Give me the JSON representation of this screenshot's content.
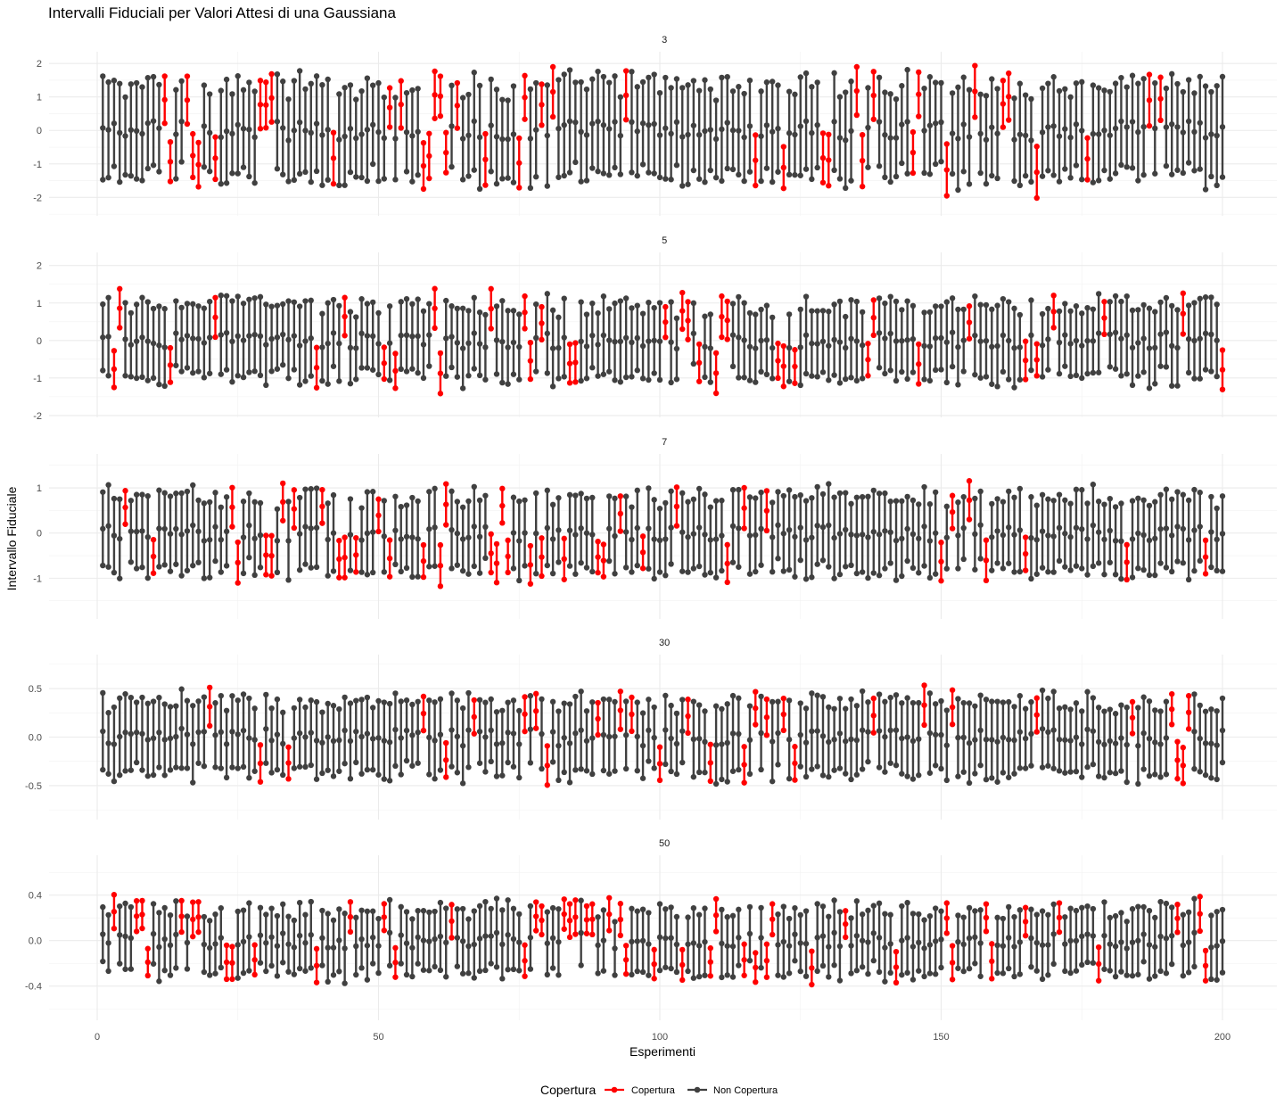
{
  "chart_data": {
    "type": "interval",
    "title": "Intervalli Fiduciali per Valori Attesi di una Gaussiana",
    "xlabel": "Esperimenti",
    "ylabel": "Intervallo Fiduciale",
    "xlim": [
      1,
      200
    ],
    "x_ticks": [
      0,
      50,
      100,
      150,
      200
    ],
    "x_tick_labels": [
      "0",
      "50",
      "100",
      "150",
      "200"
    ],
    "legend": {
      "title": "Copertura",
      "position": "bottom",
      "entries": [
        {
          "label": "Copertura",
          "color": "#FF0000"
        },
        {
          "label": "Non Copertura",
          "color": "#404040"
        }
      ]
    },
    "panels": [
      {
        "strip": "3",
        "ylim": [
          -2.55,
          2.35
        ],
        "y_ticks": [
          -2,
          -1,
          0,
          1,
          2
        ],
        "y_tick_labels": [
          "-2",
          "-1",
          "0",
          "1",
          "2"
        ],
        "base_half_width": 1.35,
        "center_sd": 0.3,
        "red_experiments": [
          12,
          13,
          16,
          17,
          18,
          21,
          29,
          30,
          31,
          42,
          52,
          54,
          58,
          59,
          60,
          61,
          62,
          64,
          69,
          75,
          76,
          79,
          81,
          94,
          117,
          122,
          129,
          130,
          135,
          136,
          138,
          145,
          146,
          151,
          156,
          161,
          162,
          167,
          176,
          187,
          189
        ],
        "max_low": -2.6,
        "max_high": 2.38
      },
      {
        "strip": "5",
        "ylim": [
          -2.05,
          2.35
        ],
        "y_ticks": [
          -2,
          -1,
          0,
          1,
          2
        ],
        "y_tick_labels": [
          "-2",
          "-1",
          "0",
          "1",
          "2"
        ],
        "base_half_width": 0.95,
        "center_sd": 0.22,
        "red_experiments": [
          3,
          4,
          13,
          21,
          39,
          44,
          51,
          53,
          60,
          61,
          70,
          76,
          77,
          79,
          84,
          85,
          101,
          104,
          105,
          107,
          110,
          111,
          112,
          121,
          122,
          124,
          137,
          138,
          146,
          155,
          165,
          167,
          170,
          179,
          193,
          200
        ],
        "max_low": -1.95,
        "max_high": 2.27
      },
      {
        "strip": "7",
        "ylim": [
          -1.9,
          1.75
        ],
        "y_ticks": [
          -1,
          0,
          1
        ],
        "y_tick_labels": [
          "-1",
          "0",
          "1"
        ],
        "base_half_width": 0.8,
        "center_sd": 0.18,
        "red_experiments": [
          5,
          10,
          24,
          25,
          30,
          31,
          33,
          35,
          40,
          43,
          44,
          46,
          50,
          52,
          58,
          61,
          62,
          70,
          71,
          72,
          73,
          77,
          79,
          83,
          89,
          90,
          93,
          97,
          103,
          112,
          115,
          119,
          150,
          152,
          155,
          158,
          165,
          183,
          197
        ],
        "max_low": -1.77,
        "max_high": 1.72
      },
      {
        "strip": "30",
        "ylim": [
          -0.85,
          0.85
        ],
        "y_ticks": [
          -0.5,
          0.0,
          0.5
        ],
        "y_tick_labels": [
          "-0.5",
          "0.0",
          "0.5"
        ],
        "base_half_width": 0.36,
        "center_sd": 0.09,
        "red_experiments": [
          20,
          29,
          34,
          58,
          62,
          67,
          76,
          78,
          80,
          89,
          93,
          95,
          100,
          105,
          109,
          115,
          117,
          119,
          122,
          124,
          138,
          147,
          152,
          167,
          184,
          191,
          192,
          193,
          194
        ],
        "max_low": -0.79,
        "max_high": 0.8
      },
      {
        "strip": "50",
        "ylim": [
          -0.7,
          0.75
        ],
        "y_ticks": [
          -0.4,
          0.0,
          0.4
        ],
        "y_tick_labels": [
          "-0.4",
          "0.0",
          "0.4"
        ],
        "base_half_width": 0.27,
        "center_sd": 0.07,
        "red_experiments": [
          3,
          7,
          8,
          9,
          15,
          17,
          18,
          23,
          24,
          28,
          39,
          45,
          51,
          53,
          63,
          76,
          78,
          79,
          83,
          84,
          85,
          87,
          88,
          91,
          93,
          94,
          99,
          104,
          109,
          110,
          115,
          117,
          119,
          120,
          127,
          133,
          142,
          151,
          152,
          158,
          159,
          165,
          171,
          178,
          192,
          196,
          197
        ],
        "max_low": -0.66,
        "max_high": 0.72
      }
    ]
  }
}
